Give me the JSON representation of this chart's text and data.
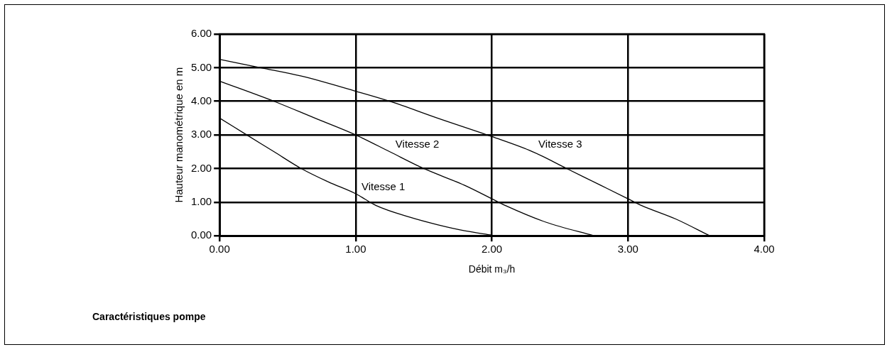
{
  "chart_data": {
    "type": "line",
    "title": "Caractéristiques pompe",
    "xlabel": "Débit m₃/h",
    "ylabel": "Hauteur manométrique en m",
    "xlim": [
      0,
      4
    ],
    "xticks": [
      {
        "value": 0,
        "label": "0.00"
      },
      {
        "value": 1,
        "label": "1.00"
      },
      {
        "value": 2,
        "label": "2.00"
      },
      {
        "value": 3,
        "label": "3.00"
      },
      {
        "value": 4,
        "label": "4.00"
      }
    ],
    "ylim": [
      0,
      6
    ],
    "yticks": [
      {
        "value": 0,
        "label": "0.00"
      },
      {
        "value": 1,
        "label": "1.00"
      },
      {
        "value": 2,
        "label": "2.00"
      },
      {
        "value": 3,
        "label": "3.00"
      },
      {
        "value": 4,
        "label": "4.00"
      },
      {
        "value": 5,
        "label": "5.00"
      },
      {
        "value": 6,
        "label": "6.00"
      }
    ],
    "grid": true,
    "legend": false,
    "marker": "none",
    "line_style": "solid",
    "series": [
      {
        "name": "Vitesse 1",
        "color": "#000000",
        "x": [
          0,
          0.2,
          0.4,
          0.6,
          0.8,
          1.0,
          1.15,
          1.4,
          1.6,
          1.8,
          2.0
        ],
        "values": [
          3.5,
          3.0,
          2.5,
          2.0,
          1.6,
          1.25,
          0.9,
          0.55,
          0.33,
          0.15,
          0.02
        ]
      },
      {
        "name": "Vitesse 2",
        "color": "#000000",
        "x": [
          0,
          0.4,
          0.7,
          1.0,
          1.25,
          1.5,
          1.8,
          2.0,
          2.1,
          2.4,
          2.75
        ],
        "values": [
          4.6,
          4.0,
          3.5,
          3.0,
          2.5,
          2.0,
          1.5,
          1.1,
          0.9,
          0.4,
          0
        ]
      },
      {
        "name": "Vitesse 3",
        "color": "#000000",
        "x": [
          0,
          0.3,
          0.6,
          1.0,
          1.25,
          1.6,
          2.0,
          2.3,
          2.55,
          2.8,
          3.0,
          3.1,
          3.35,
          3.6
        ],
        "values": [
          5.25,
          5.0,
          4.75,
          4.3,
          4.0,
          3.5,
          2.95,
          2.5,
          2.0,
          1.5,
          1.1,
          0.9,
          0.5,
          0
        ]
      }
    ]
  }
}
